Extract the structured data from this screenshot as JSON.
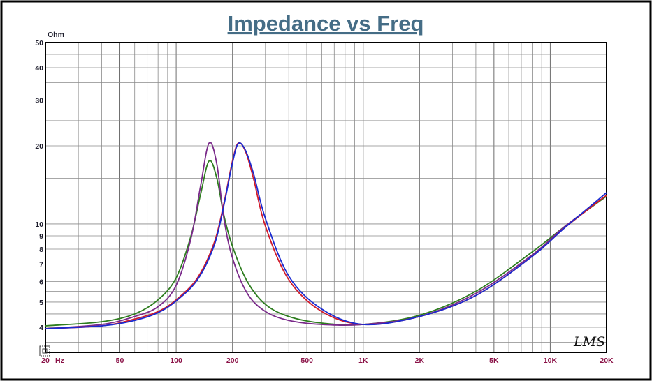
{
  "chart_data": {
    "type": "line",
    "title": "Impedance vs Freq",
    "ylabel": "Ohm",
    "x_unit_label": "Hz",
    "x_scale": "log",
    "y_scale": "log",
    "xlim": [
      20,
      20000
    ],
    "ylim": [
      3.2,
      50
    ],
    "grid": true,
    "x_tick_labels": [
      {
        "value": 20,
        "label": "20"
      },
      {
        "value": 50,
        "label": "50"
      },
      {
        "value": 100,
        "label": "100"
      },
      {
        "value": 200,
        "label": "200"
      },
      {
        "value": 500,
        "label": "500"
      },
      {
        "value": 1000,
        "label": "1K"
      },
      {
        "value": 2000,
        "label": "2K"
      },
      {
        "value": 5000,
        "label": "5K"
      },
      {
        "value": 10000,
        "label": "10K"
      },
      {
        "value": 20000,
        "label": "20K"
      }
    ],
    "y_tick_labels": [
      {
        "value": 4,
        "label": "4"
      },
      {
        "value": 5,
        "label": "5"
      },
      {
        "value": 6,
        "label": "6"
      },
      {
        "value": 7,
        "label": "7"
      },
      {
        "value": 8,
        "label": "8"
      },
      {
        "value": 9,
        "label": "9"
      },
      {
        "value": 10,
        "label": "10"
      },
      {
        "value": 20,
        "label": "20"
      },
      {
        "value": 30,
        "label": "30"
      },
      {
        "value": 40,
        "label": "40"
      },
      {
        "value": 50,
        "label": "50"
      }
    ],
    "series": [
      {
        "color": "#2e7d1f",
        "x": [
          20,
          40,
          60,
          80,
          100,
          120,
          135,
          150,
          165,
          180,
          200,
          240,
          300,
          400,
          600,
          1000,
          2000,
          4000,
          8000,
          12000,
          20000
        ],
        "y": [
          4.05,
          4.2,
          4.5,
          5.1,
          6.2,
          9.0,
          13.0,
          17.5,
          15.0,
          10.8,
          8.2,
          6.0,
          4.9,
          4.4,
          4.15,
          4.1,
          4.45,
          5.5,
          7.8,
          9.8,
          12.8
        ]
      },
      {
        "color": "#7a2a8a",
        "x": [
          20,
          40,
          60,
          80,
          100,
          120,
          135,
          150,
          165,
          180,
          200,
          240,
          300,
          400,
          600,
          1000,
          2000,
          4000,
          8000,
          12000,
          20000
        ],
        "y": [
          3.95,
          4.1,
          4.4,
          4.8,
          5.8,
          8.8,
          14.0,
          20.5,
          17.0,
          10.5,
          7.4,
          5.4,
          4.6,
          4.25,
          4.1,
          4.1,
          4.4,
          5.4,
          7.6,
          9.8,
          12.9
        ]
      },
      {
        "color": "#d11a2a",
        "x": [
          20,
          40,
          60,
          80,
          100,
          130,
          160,
          180,
          200,
          215,
          235,
          260,
          300,
          400,
          600,
          1000,
          2000,
          4000,
          8000,
          12000,
          20000
        ],
        "y": [
          3.95,
          4.05,
          4.3,
          4.6,
          5.1,
          6.2,
          8.5,
          12.0,
          17.5,
          20.5,
          19.0,
          14.8,
          9.8,
          6.1,
          4.6,
          4.1,
          4.4,
          5.3,
          7.5,
          9.7,
          12.9
        ]
      },
      {
        "color": "#1a2ad1",
        "x": [
          20,
          40,
          60,
          80,
          100,
          130,
          160,
          180,
          200,
          215,
          235,
          260,
          300,
          400,
          600,
          1000,
          2000,
          4000,
          8000,
          12000,
          20000
        ],
        "y": [
          3.95,
          4.05,
          4.25,
          4.55,
          5.05,
          6.1,
          8.3,
          11.8,
          17.2,
          20.4,
          19.2,
          15.5,
          10.5,
          6.3,
          4.7,
          4.1,
          4.4,
          5.3,
          7.5,
          9.7,
          13.2
        ]
      }
    ]
  },
  "colors": {
    "background": "#ffffff",
    "outer_border": "#000000",
    "plot_border": "#000000",
    "grid_minor": "#8a8a8a",
    "grid_major": "#6e6e6e",
    "title": "#456d86",
    "x_labels": "#8a1247",
    "y_labels": "#1d1d2c"
  },
  "watermark": "LMS"
}
